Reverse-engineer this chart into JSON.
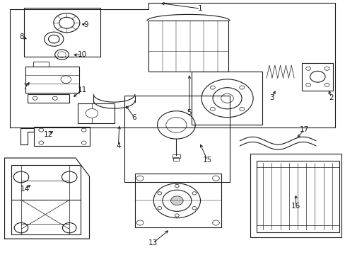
{
  "bg_color": "#ffffff",
  "line_color": "#1a1a1a",
  "fig_width": 4.89,
  "fig_height": 3.6,
  "dpi": 100,
  "labels": [
    [
      1,
      0.58,
      0.968,
      0.46,
      0.99
    ],
    [
      2,
      0.96,
      0.618,
      0.95,
      0.652
    ],
    [
      3,
      0.788,
      0.618,
      0.8,
      0.652
    ],
    [
      4,
      0.342,
      0.428,
      0.345,
      0.515
    ],
    [
      5,
      0.548,
      0.558,
      0.548,
      0.714
    ],
    [
      6,
      0.388,
      0.54,
      0.36,
      0.592
    ],
    [
      7,
      0.072,
      0.658,
      0.088,
      0.685
    ],
    [
      8,
      0.062,
      0.857,
      0.082,
      0.845
    ],
    [
      9,
      0.248,
      0.903,
      0.23,
      0.91
    ],
    [
      10,
      0.237,
      0.787,
      0.206,
      0.785
    ],
    [
      11,
      0.237,
      0.648,
      0.207,
      0.615
    ],
    [
      12,
      0.138,
      0.473,
      0.158,
      0.49
    ],
    [
      13,
      0.442,
      0.045,
      0.492,
      0.1
    ],
    [
      14,
      0.072,
      0.258,
      0.092,
      0.28
    ],
    [
      15,
      0.6,
      0.372,
      0.577,
      0.442
    ],
    [
      16,
      0.857,
      0.19,
      0.857,
      0.242
    ],
    [
      17,
      0.882,
      0.492,
      0.857,
      0.455
    ]
  ]
}
